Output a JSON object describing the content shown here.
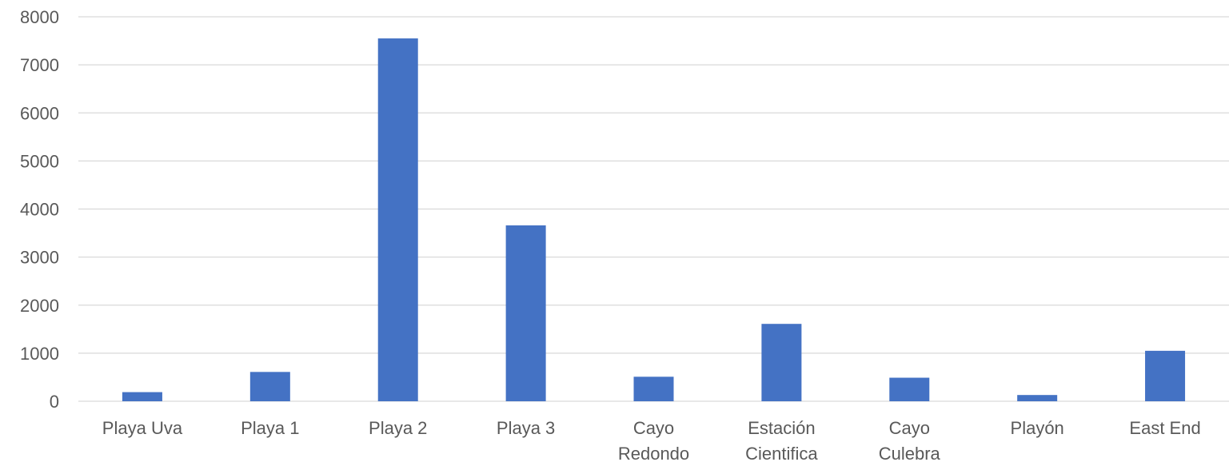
{
  "chart_data": {
    "type": "bar",
    "title": "",
    "xlabel": "",
    "ylabel": "",
    "categories": [
      "Playa Uva",
      "Playa 1",
      "Playa 2",
      "Playa 3",
      "Cayo Redondo",
      "Estación Cientifica",
      "Cayo Culebra",
      "Playón",
      "East End"
    ],
    "category_lines": [
      [
        "Playa Uva"
      ],
      [
        "Playa 1"
      ],
      [
        "Playa 2"
      ],
      [
        "Playa 3"
      ],
      [
        "Cayo",
        "Redondo"
      ],
      [
        "Estación",
        "Cientifica"
      ],
      [
        "Cayo",
        "Culebra"
      ],
      [
        "Playón"
      ],
      [
        "East End"
      ]
    ],
    "values": [
      190,
      610,
      7550,
      3660,
      510,
      1610,
      490,
      130,
      1050
    ],
    "ylim": [
      0,
      8000
    ],
    "yticks": [
      0,
      1000,
      2000,
      3000,
      4000,
      5000,
      6000,
      7000,
      8000
    ],
    "grid": true,
    "legend": "none",
    "bar_color": "#4472c4"
  }
}
